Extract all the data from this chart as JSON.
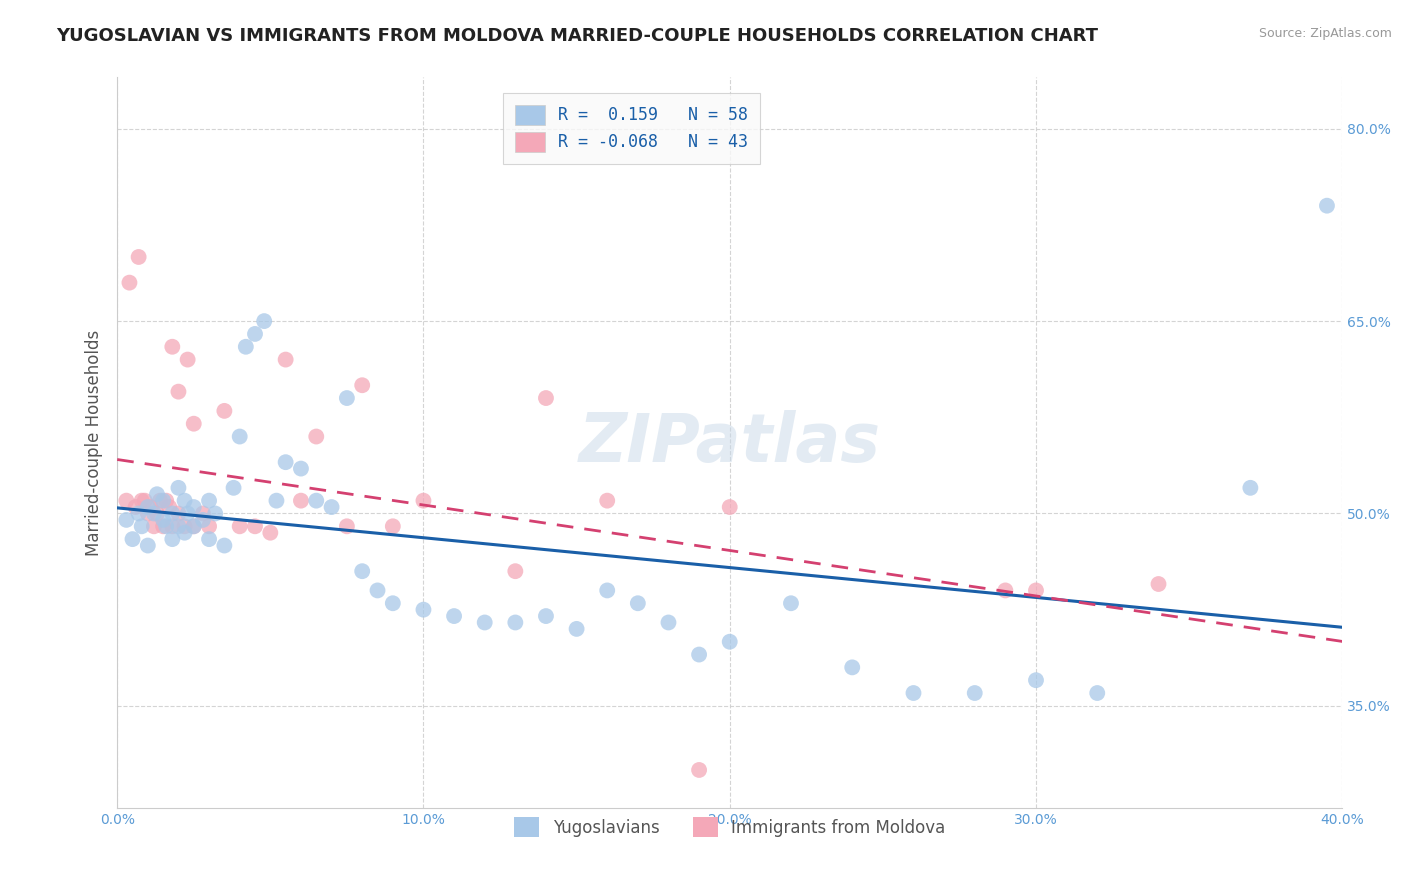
{
  "title": "YUGOSLAVIAN VS IMMIGRANTS FROM MOLDOVA MARRIED-COUPLE HOUSEHOLDS CORRELATION CHART",
  "source": "Source: ZipAtlas.com",
  "ylabel": "Married-couple Households",
  "legend_label1": "Yugoslavians",
  "legend_label2": "Immigrants from Moldova",
  "R1": 0.159,
  "N1": 58,
  "R2": -0.068,
  "N2": 43,
  "xlim": [
    0.0,
    0.4
  ],
  "ylim": [
    0.27,
    0.84
  ],
  "yticks": [
    0.35,
    0.5,
    0.65,
    0.8
  ],
  "xticks": [
    0.0,
    0.1,
    0.2,
    0.3,
    0.4
  ],
  "blue_color": "#a8c8e8",
  "pink_color": "#f4a8b8",
  "blue_line_color": "#1a5fa8",
  "pink_line_color": "#d44070",
  "title_color": "#222222",
  "source_color": "#999999",
  "axis_label_color": "#555555",
  "tick_color": "#5b9bd5",
  "background_color": "#ffffff",
  "grid_color": "#d0d0d0",
  "blue_x": [
    0.003,
    0.005,
    0.007,
    0.008,
    0.01,
    0.01,
    0.012,
    0.013,
    0.015,
    0.015,
    0.016,
    0.018,
    0.018,
    0.02,
    0.02,
    0.022,
    0.022,
    0.023,
    0.025,
    0.025,
    0.028,
    0.03,
    0.03,
    0.032,
    0.035,
    0.038,
    0.04,
    0.042,
    0.045,
    0.048,
    0.052,
    0.055,
    0.06,
    0.065,
    0.07,
    0.075,
    0.08,
    0.085,
    0.09,
    0.1,
    0.11,
    0.12,
    0.13,
    0.14,
    0.15,
    0.16,
    0.17,
    0.18,
    0.19,
    0.2,
    0.22,
    0.24,
    0.26,
    0.28,
    0.3,
    0.32,
    0.37,
    0.395
  ],
  "blue_y": [
    0.495,
    0.48,
    0.5,
    0.49,
    0.505,
    0.475,
    0.5,
    0.515,
    0.495,
    0.51,
    0.49,
    0.48,
    0.5,
    0.52,
    0.49,
    0.51,
    0.485,
    0.5,
    0.505,
    0.49,
    0.495,
    0.51,
    0.48,
    0.5,
    0.475,
    0.52,
    0.56,
    0.63,
    0.64,
    0.65,
    0.51,
    0.54,
    0.535,
    0.51,
    0.505,
    0.59,
    0.455,
    0.44,
    0.43,
    0.425,
    0.42,
    0.415,
    0.415,
    0.42,
    0.41,
    0.44,
    0.43,
    0.415,
    0.39,
    0.4,
    0.43,
    0.38,
    0.36,
    0.36,
    0.37,
    0.36,
    0.52,
    0.74
  ],
  "pink_x": [
    0.003,
    0.004,
    0.006,
    0.007,
    0.008,
    0.009,
    0.01,
    0.011,
    0.012,
    0.013,
    0.014,
    0.015,
    0.016,
    0.017,
    0.018,
    0.018,
    0.02,
    0.02,
    0.022,
    0.023,
    0.025,
    0.025,
    0.028,
    0.03,
    0.035,
    0.04,
    0.045,
    0.05,
    0.055,
    0.06,
    0.065,
    0.075,
    0.08,
    0.09,
    0.1,
    0.13,
    0.14,
    0.16,
    0.19,
    0.2,
    0.29,
    0.3,
    0.34
  ],
  "pink_y": [
    0.51,
    0.68,
    0.505,
    0.7,
    0.51,
    0.51,
    0.5,
    0.505,
    0.49,
    0.5,
    0.51,
    0.49,
    0.51,
    0.505,
    0.49,
    0.63,
    0.5,
    0.595,
    0.49,
    0.62,
    0.49,
    0.57,
    0.5,
    0.49,
    0.58,
    0.49,
    0.49,
    0.485,
    0.62,
    0.51,
    0.56,
    0.49,
    0.6,
    0.49,
    0.51,
    0.455,
    0.59,
    0.51,
    0.3,
    0.505,
    0.44,
    0.44,
    0.445
  ]
}
